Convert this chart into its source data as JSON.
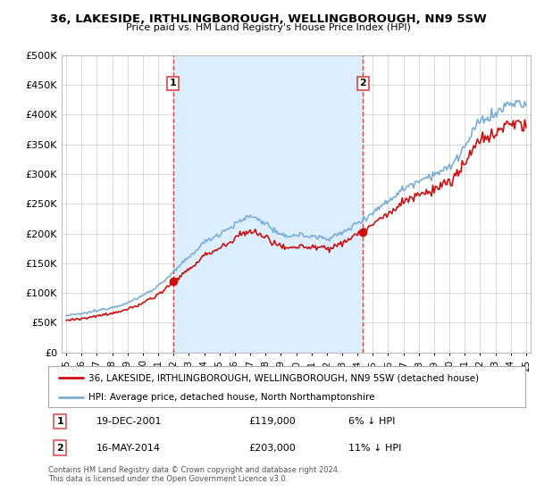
{
  "title": "36, LAKESIDE, IRTHLINGBOROUGH, WELLINGBOROUGH, NN9 5SW",
  "subtitle": "Price paid vs. HM Land Registry's House Price Index (HPI)",
  "legend_line1": "36, LAKESIDE, IRTHLINGBOROUGH, WELLINGBOROUGH, NN9 5SW (detached house)",
  "legend_line2": "HPI: Average price, detached house, North Northamptonshire",
  "footnote": "Contains HM Land Registry data © Crown copyright and database right 2024.\nThis data is licensed under the Open Government Licence v3.0.",
  "transaction1_date": "19-DEC-2001",
  "transaction1_price": "£119,000",
  "transaction1_hpi": "6% ↓ HPI",
  "transaction2_date": "16-MAY-2014",
  "transaction2_price": "£203,000",
  "transaction2_hpi": "11% ↓ HPI",
  "hpi_color": "#7aaed6",
  "price_color": "#cc1111",
  "dashed_color": "#dd4444",
  "shade_color": "#ddeeff",
  "ylim": [
    0,
    500000
  ],
  "yticks": [
    0,
    50000,
    100000,
    150000,
    200000,
    250000,
    300000,
    350000,
    400000,
    450000,
    500000
  ],
  "background_color": "#ffffff",
  "grid_color": "#cccccc",
  "marker1_x": 2001.96,
  "marker1_y": 119000,
  "marker2_x": 2014.37,
  "marker2_y": 203000,
  "vline1_x": 2001.96,
  "vline2_x": 2014.37,
  "xlim_left": 1994.7,
  "xlim_right": 2025.3
}
